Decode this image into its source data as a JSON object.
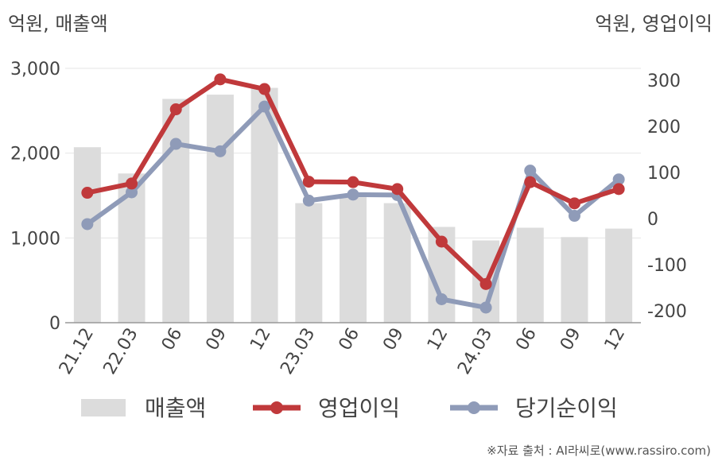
{
  "chart_data": {
    "type": "bar",
    "left_unit_label": "억원, 매출액",
    "right_unit_label": "억원, 영업이익",
    "categories": [
      "21.12",
      "22.03",
      "06",
      "09",
      "12",
      "23.03",
      "06",
      "09",
      "12",
      "24.03",
      "06",
      "09",
      "12"
    ],
    "left_axis": {
      "min": 0,
      "max": 3000,
      "ticks": [
        0,
        1000,
        2000,
        3000
      ],
      "tick_labels": [
        "0",
        "1,000",
        "2,000",
        "3,000"
      ]
    },
    "right_axis": {
      "min": -200,
      "max": 300,
      "ticks": [
        -200,
        -100,
        0,
        100,
        200,
        300
      ],
      "tick_labels": [
        "-200",
        "-100",
        "0",
        "100",
        "200",
        "300"
      ]
    },
    "series": [
      {
        "name": "매출액",
        "kind": "bar",
        "axis": "left",
        "color": "#dcdcdc",
        "values": [
          2070,
          1760,
          2640,
          2690,
          2770,
          1410,
          1480,
          1410,
          1130,
          970,
          1120,
          1010,
          1110
        ]
      },
      {
        "name": "영업이익",
        "kind": "line",
        "axis": "right",
        "color": "#c0393b",
        "values": [
          56,
          76,
          237,
          302,
          281,
          80,
          79,
          64,
          -50,
          -142,
          79,
          33,
          64
        ]
      },
      {
        "name": "당기순이익",
        "kind": "line",
        "axis": "right",
        "color": "#8f9bb8",
        "values": [
          -12,
          57,
          162,
          146,
          243,
          39,
          52,
          51,
          -175,
          -193,
          104,
          6,
          85
        ]
      }
    ],
    "grid": true,
    "legend_position": "bottom"
  },
  "source": "※자료 출처 : AI라씨로(www.rassiro.com)"
}
